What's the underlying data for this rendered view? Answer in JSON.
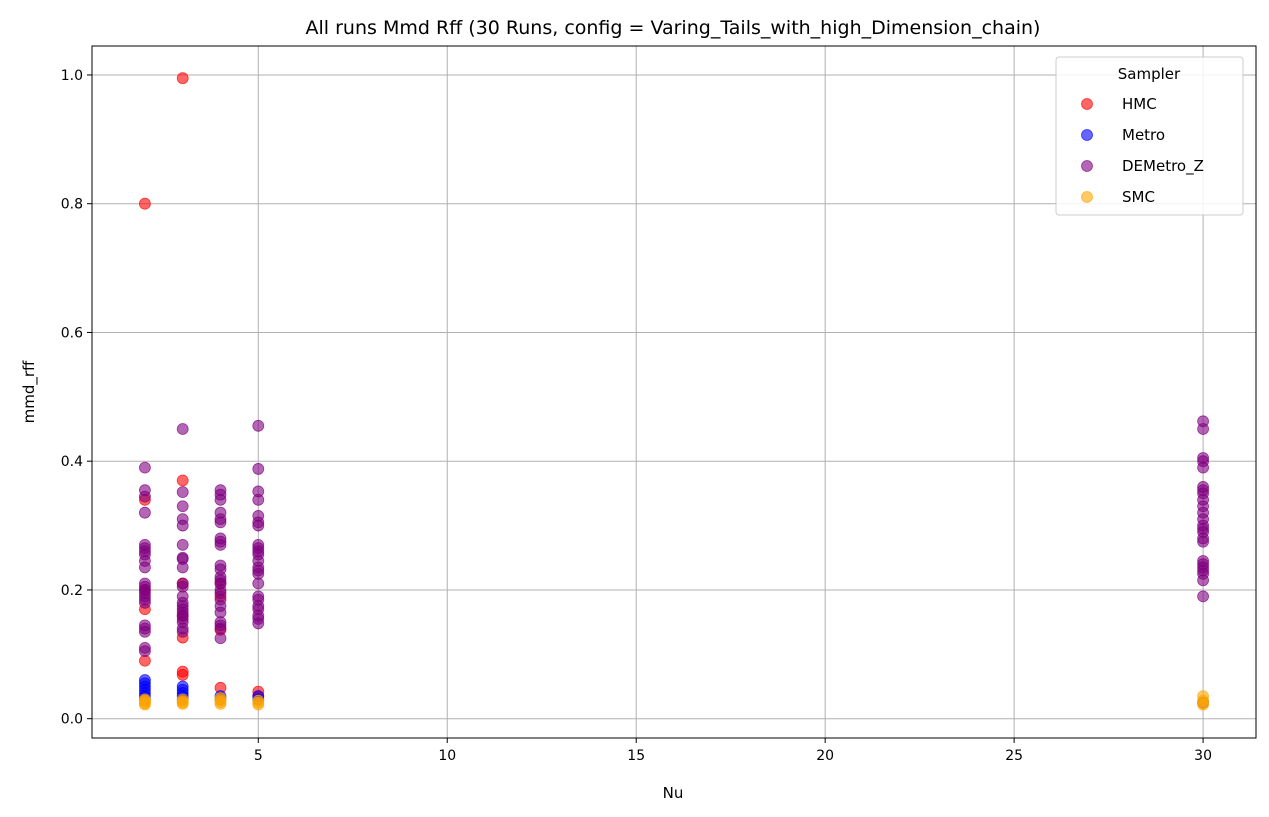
{
  "chart_data": {
    "type": "scatter",
    "title": "All runs Mmd Rff (30 Runs, config = Varing_Tails_with_high_Dimension_chain)",
    "xlabel": "Nu",
    "ylabel": "mmd_rff",
    "xlim": [
      0.6,
      31.4
    ],
    "ylim": [
      -0.03,
      1.045
    ],
    "xticks": [
      5,
      10,
      15,
      20,
      25,
      30
    ],
    "yticks": [
      0.0,
      0.2,
      0.4,
      0.6,
      0.8,
      1.0
    ],
    "ytick_labels": [
      "0.0",
      "0.2",
      "0.4",
      "0.6",
      "0.8",
      "1.0"
    ],
    "grid": true,
    "legend": {
      "title": "Sampler",
      "position": "top-right"
    },
    "series": [
      {
        "name": "HMC",
        "color": "#ff0000",
        "points": [
          [
            2,
            0.8
          ],
          [
            2,
            0.09
          ],
          [
            2,
            0.17
          ],
          [
            2,
            0.2
          ],
          [
            2,
            0.34
          ],
          [
            3,
            0.995
          ],
          [
            3,
            0.37
          ],
          [
            3,
            0.073
          ],
          [
            3,
            0.068
          ],
          [
            3,
            0.126
          ],
          [
            3,
            0.16
          ],
          [
            3,
            0.21
          ],
          [
            4,
            0.048
          ],
          [
            4,
            0.138
          ],
          [
            4,
            0.19
          ],
          [
            4,
            0.21
          ],
          [
            5,
            0.042
          ],
          [
            5,
            0.035
          ]
        ]
      },
      {
        "name": "Metro",
        "color": "#0000ff",
        "points": [
          [
            2,
            0.06
          ],
          [
            2,
            0.055
          ],
          [
            2,
            0.05
          ],
          [
            2,
            0.045
          ],
          [
            2,
            0.04
          ],
          [
            2,
            0.035
          ],
          [
            2,
            0.03
          ],
          [
            3,
            0.05
          ],
          [
            3,
            0.045
          ],
          [
            3,
            0.04
          ],
          [
            3,
            0.035
          ],
          [
            3,
            0.03
          ],
          [
            4,
            0.035
          ],
          [
            4,
            0.03
          ],
          [
            5,
            0.035
          ],
          [
            5,
            0.03
          ],
          [
            30,
            0.025
          ]
        ]
      },
      {
        "name": "DEMetro_Z",
        "color": "#800080",
        "points": [
          [
            2,
            0.39
          ],
          [
            2,
            0.355
          ],
          [
            2,
            0.345
          ],
          [
            2,
            0.32
          ],
          [
            2,
            0.27
          ],
          [
            2,
            0.265
          ],
          [
            2,
            0.26
          ],
          [
            2,
            0.255
          ],
          [
            2,
            0.245
          ],
          [
            2,
            0.235
          ],
          [
            2,
            0.21
          ],
          [
            2,
            0.205
          ],
          [
            2,
            0.2
          ],
          [
            2,
            0.195
          ],
          [
            2,
            0.19
          ],
          [
            2,
            0.185
          ],
          [
            2,
            0.18
          ],
          [
            2,
            0.145
          ],
          [
            2,
            0.14
          ],
          [
            2,
            0.135
          ],
          [
            2,
            0.11
          ],
          [
            2,
            0.105
          ],
          [
            3,
            0.45
          ],
          [
            3,
            0.352
          ],
          [
            3,
            0.33
          ],
          [
            3,
            0.31
          ],
          [
            3,
            0.3
          ],
          [
            3,
            0.27
          ],
          [
            3,
            0.25
          ],
          [
            3,
            0.248
          ],
          [
            3,
            0.235
          ],
          [
            3,
            0.21
          ],
          [
            3,
            0.205
          ],
          [
            3,
            0.19
          ],
          [
            3,
            0.18
          ],
          [
            3,
            0.175
          ],
          [
            3,
            0.17
          ],
          [
            3,
            0.165
          ],
          [
            3,
            0.16
          ],
          [
            3,
            0.155
          ],
          [
            3,
            0.15
          ],
          [
            3,
            0.14
          ],
          [
            3,
            0.135
          ],
          [
            4,
            0.355
          ],
          [
            4,
            0.348
          ],
          [
            4,
            0.34
          ],
          [
            4,
            0.32
          ],
          [
            4,
            0.31
          ],
          [
            4,
            0.305
          ],
          [
            4,
            0.28
          ],
          [
            4,
            0.275
          ],
          [
            4,
            0.27
          ],
          [
            4,
            0.238
          ],
          [
            4,
            0.232
          ],
          [
            4,
            0.22
          ],
          [
            4,
            0.215
          ],
          [
            4,
            0.21
          ],
          [
            4,
            0.2
          ],
          [
            4,
            0.195
          ],
          [
            4,
            0.185
          ],
          [
            4,
            0.175
          ],
          [
            4,
            0.165
          ],
          [
            4,
            0.15
          ],
          [
            4,
            0.145
          ],
          [
            4,
            0.14
          ],
          [
            4,
            0.125
          ],
          [
            5,
            0.455
          ],
          [
            5,
            0.388
          ],
          [
            5,
            0.353
          ],
          [
            5,
            0.34
          ],
          [
            5,
            0.315
          ],
          [
            5,
            0.305
          ],
          [
            5,
            0.3
          ],
          [
            5,
            0.27
          ],
          [
            5,
            0.265
          ],
          [
            5,
            0.26
          ],
          [
            5,
            0.255
          ],
          [
            5,
            0.245
          ],
          [
            5,
            0.235
          ],
          [
            5,
            0.23
          ],
          [
            5,
            0.225
          ],
          [
            5,
            0.21
          ],
          [
            5,
            0.19
          ],
          [
            5,
            0.185
          ],
          [
            5,
            0.175
          ],
          [
            5,
            0.17
          ],
          [
            5,
            0.16
          ],
          [
            5,
            0.155
          ],
          [
            5,
            0.148
          ],
          [
            30,
            0.462
          ],
          [
            30,
            0.45
          ],
          [
            30,
            0.405
          ],
          [
            30,
            0.4
          ],
          [
            30,
            0.39
          ],
          [
            30,
            0.36
          ],
          [
            30,
            0.355
          ],
          [
            30,
            0.35
          ],
          [
            30,
            0.34
          ],
          [
            30,
            0.33
          ],
          [
            30,
            0.32
          ],
          [
            30,
            0.31
          ],
          [
            30,
            0.3
          ],
          [
            30,
            0.295
          ],
          [
            30,
            0.29
          ],
          [
            30,
            0.28
          ],
          [
            30,
            0.275
          ],
          [
            30,
            0.245
          ],
          [
            30,
            0.24
          ],
          [
            30,
            0.235
          ],
          [
            30,
            0.23
          ],
          [
            30,
            0.225
          ],
          [
            30,
            0.215
          ],
          [
            30,
            0.19
          ]
        ]
      },
      {
        "name": "SMC",
        "color": "#ffa500",
        "points": [
          [
            2,
            0.03
          ],
          [
            2,
            0.028
          ],
          [
            2,
            0.026
          ],
          [
            2,
            0.024
          ],
          [
            2,
            0.022
          ],
          [
            3,
            0.03
          ],
          [
            3,
            0.027
          ],
          [
            3,
            0.025
          ],
          [
            3,
            0.023
          ],
          [
            4,
            0.032
          ],
          [
            4,
            0.029
          ],
          [
            4,
            0.026
          ],
          [
            4,
            0.023
          ],
          [
            5,
            0.028
          ],
          [
            5,
            0.025
          ],
          [
            5,
            0.022
          ],
          [
            30,
            0.035
          ],
          [
            30,
            0.028
          ],
          [
            30,
            0.024
          ],
          [
            30,
            0.022
          ]
        ]
      }
    ]
  }
}
